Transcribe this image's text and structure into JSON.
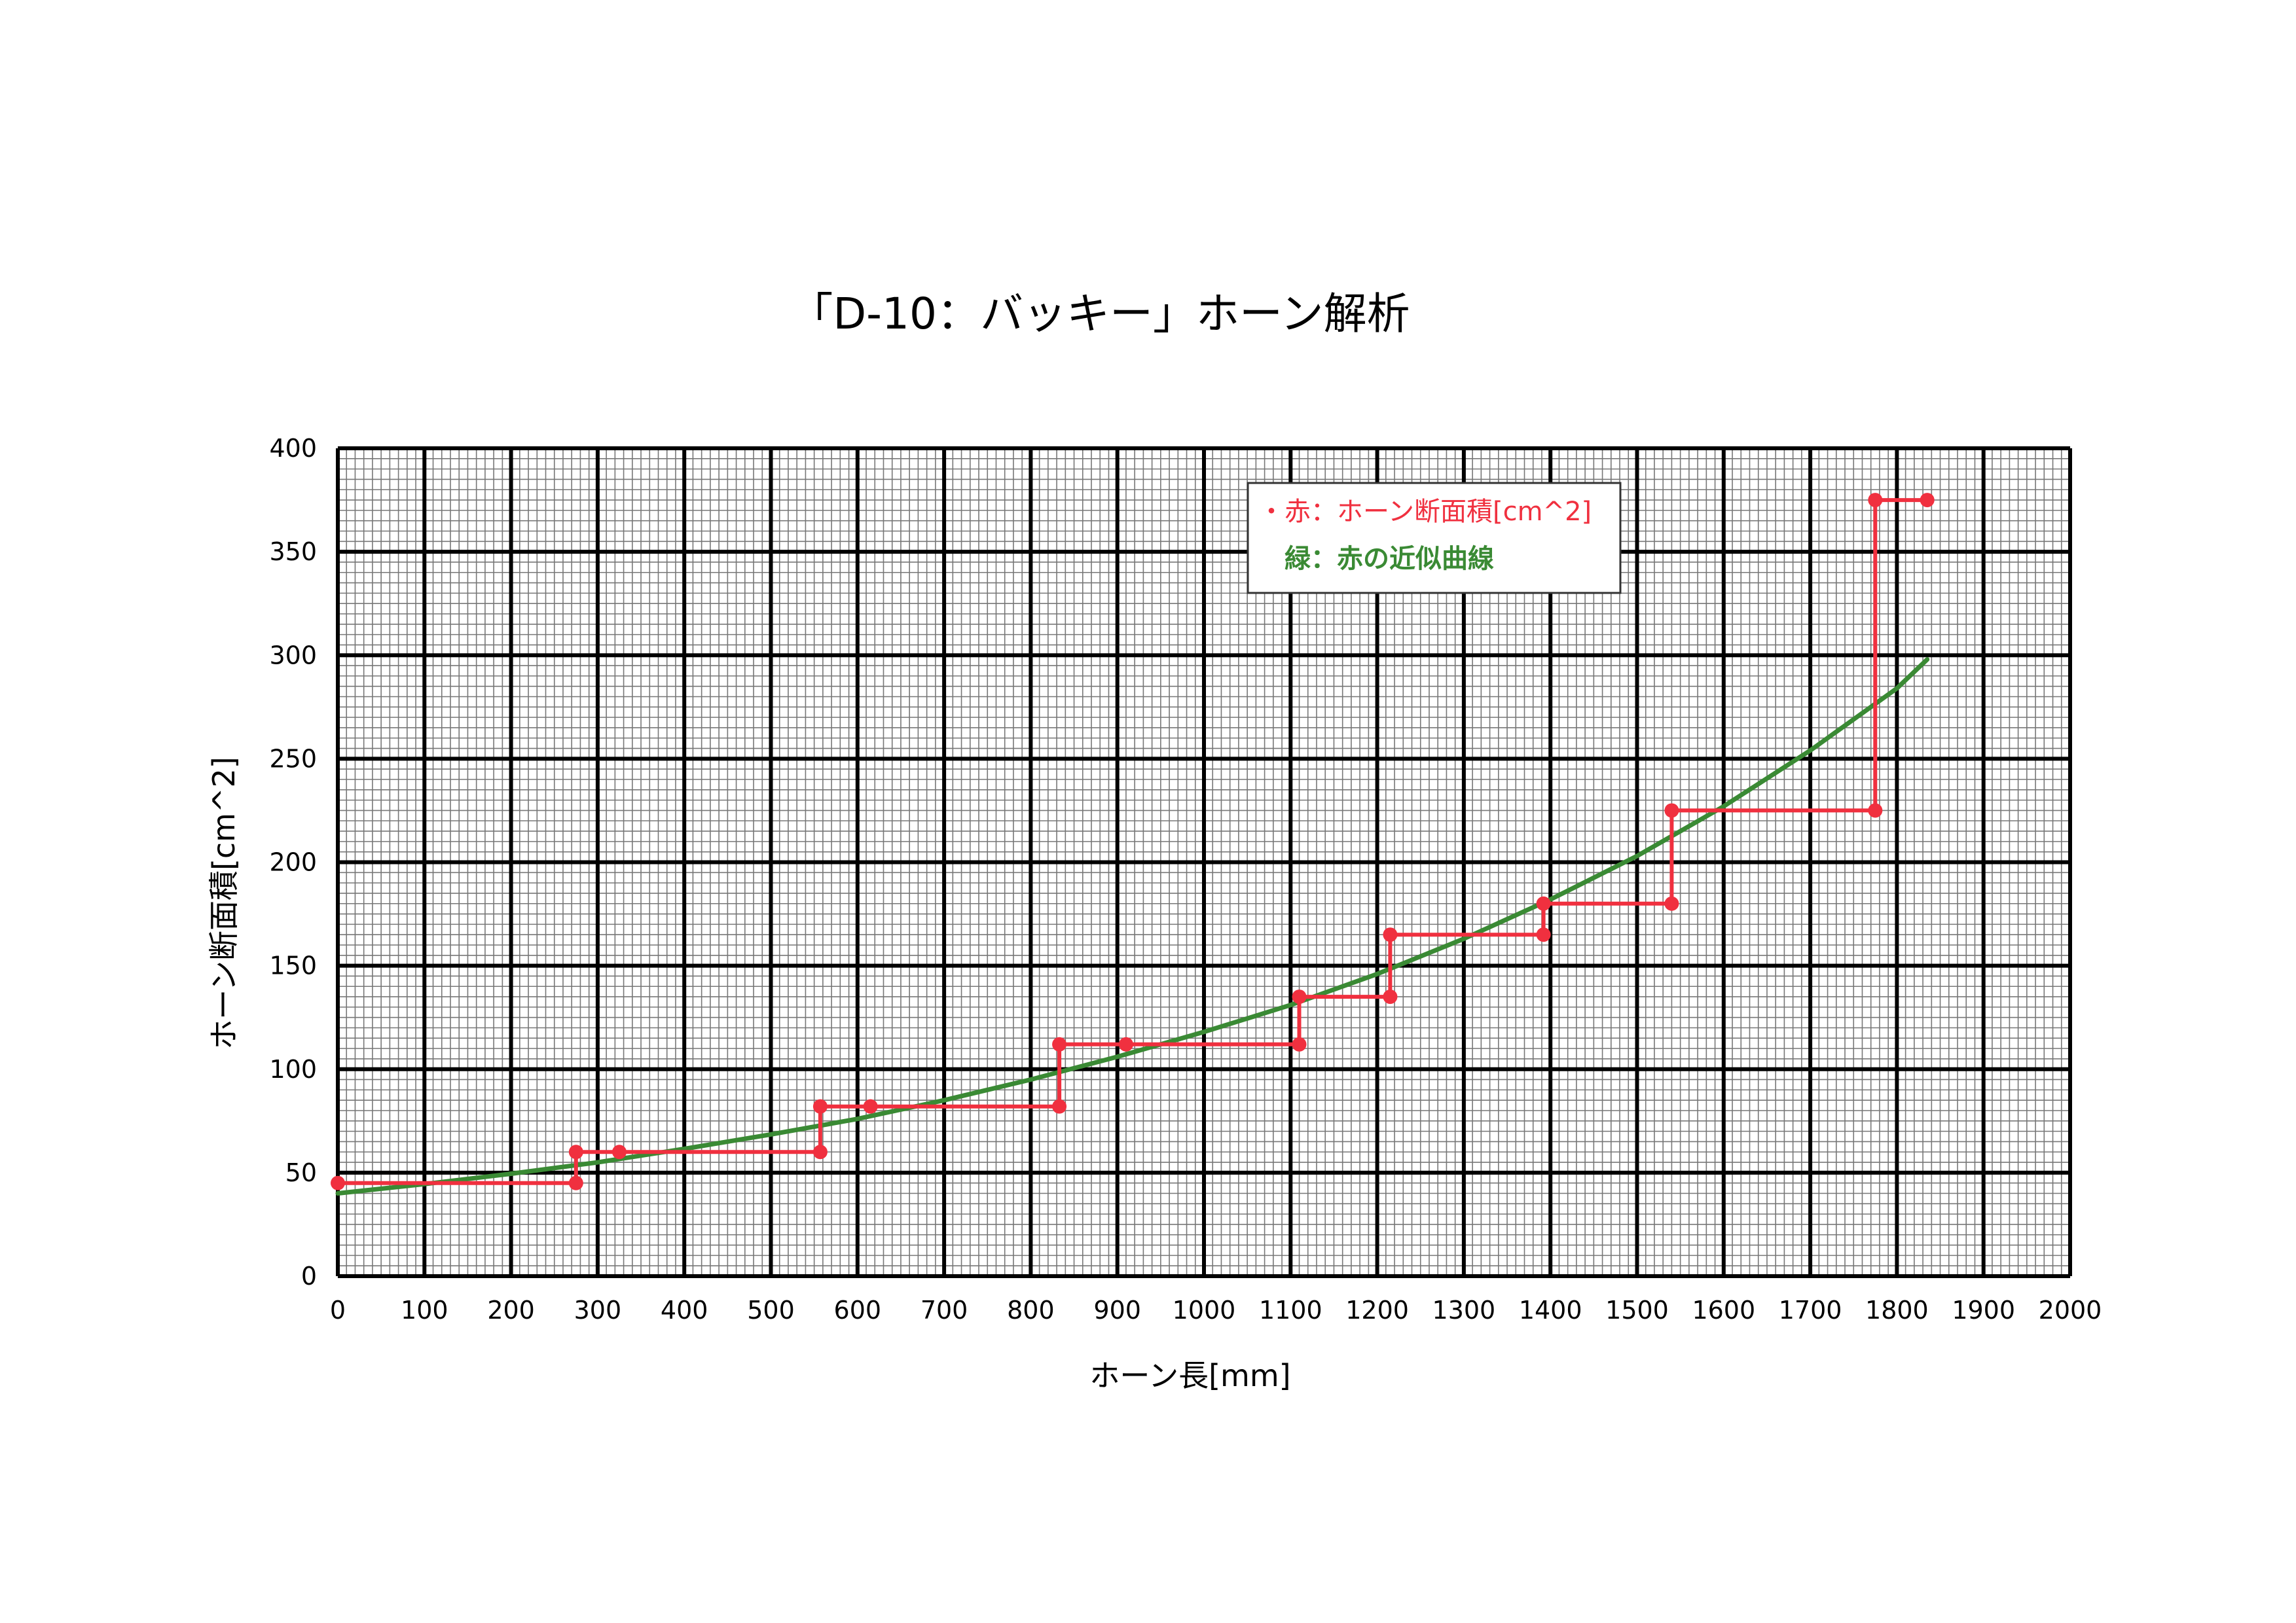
{
  "colors": {
    "measured": "#f0303f",
    "approx": "#3a8a34",
    "minor_grid": "#777777",
    "major_grid": "#000000"
  },
  "legend": {
    "bullet": "・",
    "measured_label": "赤：ホーン断面積[cm^2]",
    "approx_label": "緑：赤の近似曲線"
  },
  "chart_data": {
    "type": "line",
    "title": "「D-10：バッキー」ホーン解析",
    "xlabel": "ホーン長[mm]",
    "ylabel": "ホーン断面積[cm^2]",
    "xlim": [
      0,
      2000
    ],
    "ylim": [
      0,
      400
    ],
    "xticks": [
      0,
      100,
      200,
      300,
      400,
      500,
      600,
      700,
      800,
      900,
      1000,
      1100,
      1200,
      1300,
      1400,
      1500,
      1600,
      1700,
      1800,
      1900,
      2000
    ],
    "yticks": [
      0,
      50,
      100,
      150,
      200,
      250,
      300,
      350,
      400
    ],
    "grid": true,
    "legend_position": "top-right",
    "series": [
      {
        "name": "赤：ホーン断面積[cm^2]",
        "style": "step",
        "x": [
          0,
          275,
          275,
          325,
          557,
          557,
          615,
          833,
          833,
          910,
          1110,
          1110,
          1215,
          1215,
          1392,
          1392,
          1540,
          1540,
          1775,
          1775,
          1835
        ],
        "y": [
          45,
          45,
          60,
          60,
          60,
          82,
          82,
          82,
          112,
          112,
          112,
          135,
          135,
          165,
          165,
          180,
          180,
          225,
          225,
          375,
          375
        ],
        "markers": [
          [
            0,
            45
          ],
          [
            275,
            45
          ],
          [
            275,
            60
          ],
          [
            325,
            60
          ],
          [
            557,
            60
          ],
          [
            557,
            82
          ],
          [
            615,
            82
          ],
          [
            833,
            82
          ],
          [
            833,
            112
          ],
          [
            910,
            112
          ],
          [
            1110,
            112
          ],
          [
            1110,
            135
          ],
          [
            1215,
            135
          ],
          [
            1215,
            165
          ],
          [
            1392,
            165
          ],
          [
            1392,
            180
          ],
          [
            1540,
            180
          ],
          [
            1540,
            225
          ],
          [
            1775,
            225
          ],
          [
            1775,
            375
          ],
          [
            1835,
            375
          ]
        ]
      },
      {
        "name": "緑：赤の近似曲線",
        "style": "curve",
        "x": [
          0,
          100,
          200,
          300,
          400,
          500,
          600,
          700,
          800,
          900,
          1000,
          1100,
          1200,
          1300,
          1400,
          1500,
          1600,
          1700,
          1800,
          1835
        ],
        "y": [
          40,
          44.5,
          49.5,
          55,
          61.5,
          68.5,
          76,
          85,
          95,
          106,
          118,
          131,
          146,
          163,
          182,
          203,
          227,
          254,
          284,
          298
        ]
      }
    ]
  }
}
